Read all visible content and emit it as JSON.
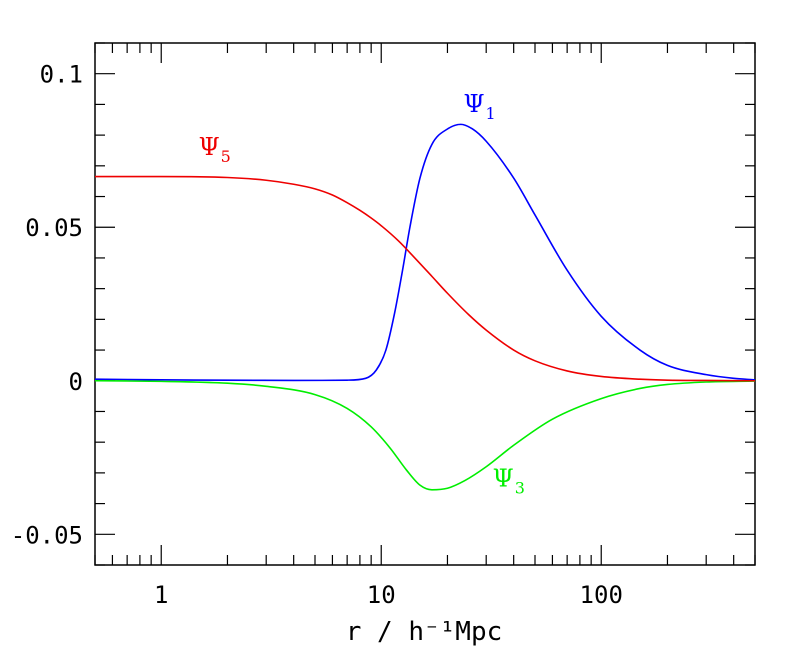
{
  "chart_data": {
    "type": "line",
    "title": "",
    "xlabel": "r / h⁻¹Mpc",
    "ylabel": "",
    "xscale": "log",
    "xlim": [
      0.5,
      500
    ],
    "ylim": [
      -0.06,
      0.11
    ],
    "x_ticks": [
      1,
      10,
      100
    ],
    "x_tick_labels": [
      "1",
      "10",
      "100"
    ],
    "y_ticks": [
      -0.05,
      0,
      0.05,
      0.1
    ],
    "y_tick_labels": [
      "-0.05",
      "0",
      "0.05",
      "0.1"
    ],
    "grid": false,
    "series": [
      {
        "name": "Ψ",
        "subscript": "1",
        "color": "#0000ff",
        "x": [
          0.5,
          1,
          2,
          4,
          7,
          8.5,
          9.5,
          10.5,
          11.5,
          12.5,
          13.5,
          15,
          17,
          20,
          23,
          26,
          30,
          40,
          50,
          70,
          100,
          150,
          200,
          300,
          400,
          500
        ],
        "y": [
          0.0005,
          0.0003,
          0.0002,
          0.0001,
          0.0002,
          0.0008,
          0.0035,
          0.01,
          0.022,
          0.036,
          0.05,
          0.066,
          0.077,
          0.082,
          0.0835,
          0.082,
          0.078,
          0.066,
          0.054,
          0.036,
          0.021,
          0.01,
          0.005,
          0.002,
          0.0008,
          0.0003
        ]
      },
      {
        "name": "Ψ",
        "subscript": "3",
        "color": "#00ee00",
        "x": [
          0.5,
          1,
          2,
          3,
          5,
          7,
          9,
          11,
          13,
          15,
          17,
          20,
          24,
          30,
          40,
          60,
          100,
          150,
          200,
          300,
          500
        ],
        "y": [
          0,
          -0.0002,
          -0.0008,
          -0.0018,
          -0.0045,
          -0.009,
          -0.015,
          -0.022,
          -0.029,
          -0.034,
          -0.0355,
          -0.035,
          -0.0325,
          -0.028,
          -0.021,
          -0.0125,
          -0.0058,
          -0.0025,
          -0.0012,
          -0.0004,
          -0.0001
        ]
      },
      {
        "name": "Ψ",
        "subscript": "5",
        "color": "#ee0000",
        "x": [
          0.5,
          1,
          2,
          3,
          4,
          5,
          6,
          7,
          8,
          9,
          10,
          12,
          14,
          17,
          20,
          25,
          30,
          40,
          50,
          70,
          100,
          150,
          200,
          300,
          500
        ],
        "y": [
          0.0665,
          0.0665,
          0.0662,
          0.0653,
          0.064,
          0.0625,
          0.0605,
          0.058,
          0.0555,
          0.053,
          0.0505,
          0.0455,
          0.0405,
          0.034,
          0.0285,
          0.0215,
          0.0165,
          0.01,
          0.0065,
          0.0032,
          0.0014,
          0.0005,
          0.0002,
          0.0001,
          0
        ]
      }
    ],
    "annotations": [
      {
        "series": 0,
        "text": "Ψ",
        "sub": "1",
        "at_x": 28,
        "at_y": 0.0875
      },
      {
        "series": 1,
        "text": "Ψ",
        "sub": "3",
        "at_x": 38,
        "at_y": -0.0345
      },
      {
        "series": 2,
        "text": "Ψ",
        "sub": "5",
        "at_x": 1.75,
        "at_y": 0.0735
      }
    ]
  }
}
